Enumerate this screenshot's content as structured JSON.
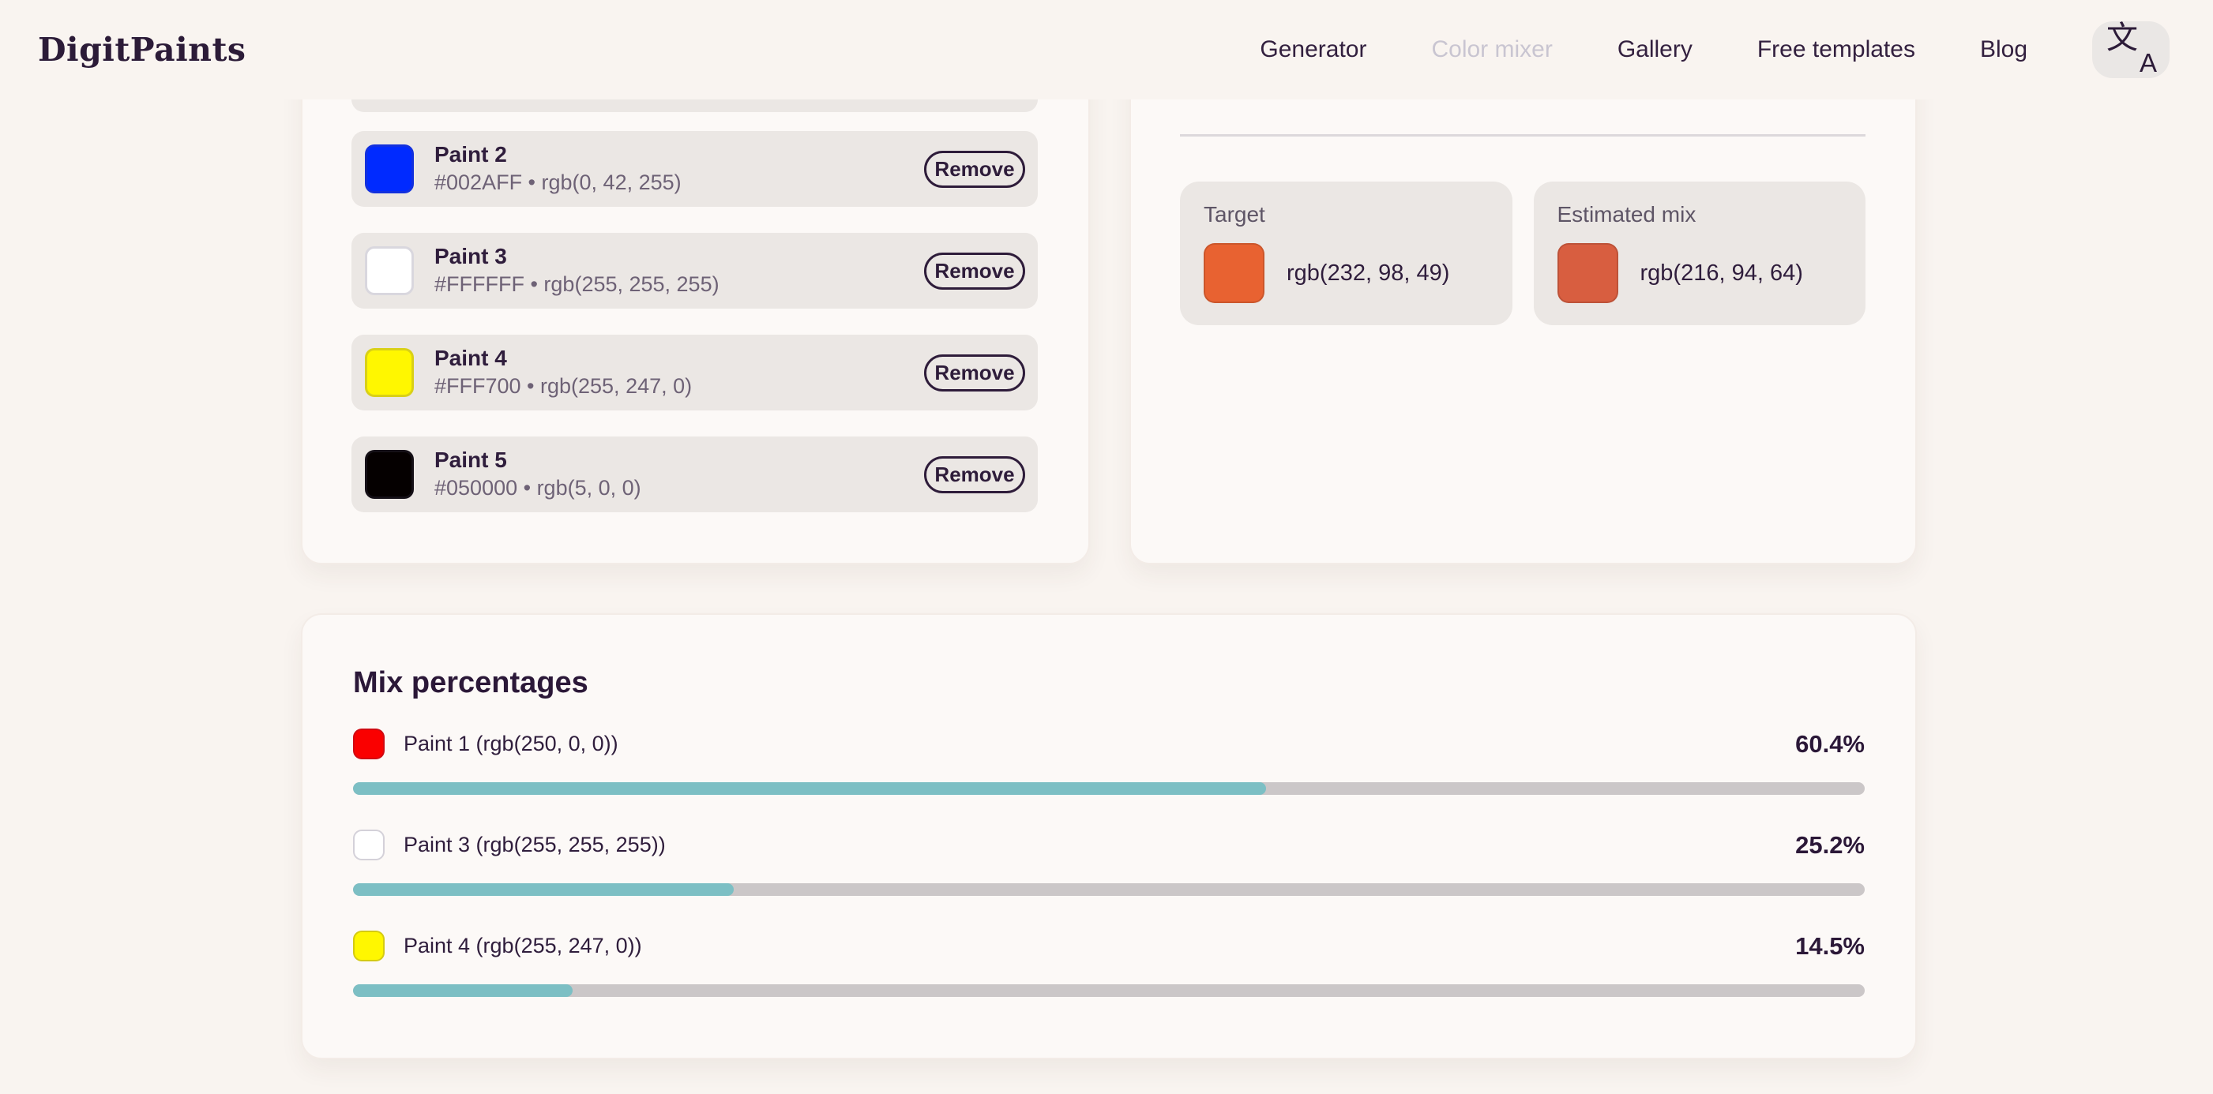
{
  "header": {
    "logo": "DigitPaints",
    "nav": [
      {
        "label": "Generator",
        "disabled": false
      },
      {
        "label": "Color mixer",
        "disabled": true
      },
      {
        "label": "Gallery",
        "disabled": false
      },
      {
        "label": "Free templates",
        "disabled": false
      },
      {
        "label": "Blog",
        "disabled": false
      }
    ],
    "translate_button": {
      "glyph_cjk": "文",
      "glyph_latin": "A"
    }
  },
  "paints_panel": {
    "items": [
      {
        "name": "Paint 2",
        "color": "#002AFF",
        "detail": "#002AFF • rgb(0, 42, 255)",
        "remove_label": "Remove"
      },
      {
        "name": "Paint 3",
        "color": "#FFFFFF",
        "detail": "#FFFFFF • rgb(255, 255, 255)",
        "remove_label": "Remove"
      },
      {
        "name": "Paint 4",
        "color": "#FFF700",
        "detail": "#FFF700 • rgb(255, 247, 0)",
        "remove_label": "Remove"
      },
      {
        "name": "Paint 5",
        "color": "#050000",
        "detail": "#050000 • rgb(5, 0, 0)",
        "remove_label": "Remove"
      }
    ]
  },
  "result_panel": {
    "target": {
      "label": "Target",
      "value": "rgb(232, 98, 49)",
      "color": "#E86231"
    },
    "estimated": {
      "label": "Estimated mix",
      "value": "rgb(216, 94, 64)",
      "color": "#D85E40"
    }
  },
  "mix_panel": {
    "title": "Mix percentages",
    "bar_color": "#7CBFC4",
    "track_color": "#CBC7C8",
    "rows": [
      {
        "label": "Paint 1 (rgb(250, 0, 0))",
        "color": "#FA0000",
        "percent_label": "60.4%",
        "percent": 60.4
      },
      {
        "label": "Paint 3 (rgb(255, 255, 255))",
        "color": "#FFFFFF",
        "percent_label": "25.2%",
        "percent": 25.2
      },
      {
        "label": "Paint 4 (rgb(255, 247, 0))",
        "color": "#FFF700",
        "percent_label": "14.5%",
        "percent": 14.5
      }
    ]
  }
}
